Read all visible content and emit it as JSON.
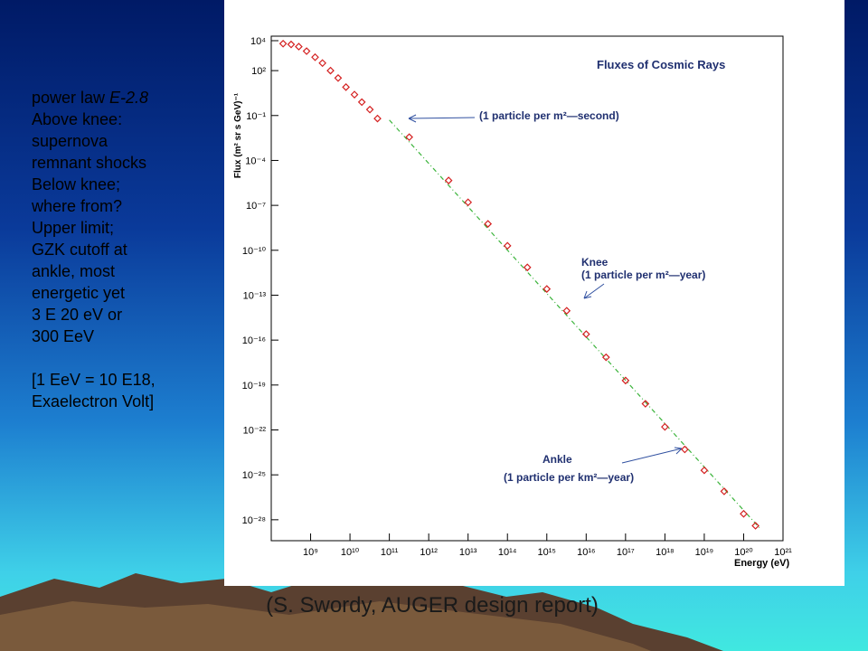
{
  "slide": {
    "text_lines": [
      [
        "power law ",
        "E-2.8"
      ],
      [
        "Above knee:"
      ],
      [
        "supernova"
      ],
      [
        "remnant shocks"
      ],
      [
        "Below knee;"
      ],
      [
        "where from?"
      ],
      [
        "Upper limit;"
      ],
      [
        "GZK cutoff at"
      ],
      [
        "ankle, most"
      ],
      [
        "energetic yet"
      ],
      [
        "3 E 20 eV or"
      ],
      [
        "300 EeV"
      ],
      [
        "[1 EeV = 10 E18,"
      ],
      [
        "Exaelectron Volt]"
      ]
    ],
    "caption": "(S. Swordy, AUGER design report)"
  },
  "chart_data": {
    "type": "scatter",
    "title": "Fluxes of Cosmic Rays",
    "xlabel": "Energy (eV)",
    "ylabel": "Flux (m² sr s GeV)⁻¹",
    "xlog": true,
    "ylog": true,
    "xlim": [
      100000000.0,
      1e+21
    ],
    "ylim": [
      4e-30,
      20000.0
    ],
    "xticks": [
      {
        "value": 1000000000.0,
        "label": "10⁹"
      },
      {
        "value": 10000000000.0,
        "label": "10¹⁰"
      },
      {
        "value": 100000000000.0,
        "label": "10¹¹"
      },
      {
        "value": 1000000000000.0,
        "label": "10¹²"
      },
      {
        "value": 10000000000000.0,
        "label": "10¹³"
      },
      {
        "value": 100000000000000.0,
        "label": "10¹⁴"
      },
      {
        "value": 1000000000000000.0,
        "label": "10¹⁵"
      },
      {
        "value": 1e+16,
        "label": "10¹⁶"
      },
      {
        "value": 1e+17,
        "label": "10¹⁷"
      },
      {
        "value": 1e+18,
        "label": "10¹⁸"
      },
      {
        "value": 1e+19,
        "label": "10¹⁹"
      },
      {
        "value": 1e+20,
        "label": "10²⁰"
      },
      {
        "value": 1e+21,
        "label": "10²¹"
      }
    ],
    "yticks": [
      {
        "value": 10000.0,
        "label": "10⁴"
      },
      {
        "value": 100.0,
        "label": "10²"
      },
      {
        "value": 0.1,
        "label": "10⁻¹"
      },
      {
        "value": 0.0001,
        "label": "10⁻⁴"
      },
      {
        "value": 1e-07,
        "label": "10⁻⁷"
      },
      {
        "value": 1e-10,
        "label": "10⁻¹⁰"
      },
      {
        "value": 1e-13,
        "label": "10⁻¹³"
      },
      {
        "value": 1e-16,
        "label": "10⁻¹⁶"
      },
      {
        "value": 1e-19,
        "label": "10⁻¹⁹"
      },
      {
        "value": 1e-22,
        "label": "10⁻²²"
      },
      {
        "value": 1e-25,
        "label": "10⁻²⁵"
      },
      {
        "value": 1e-28,
        "label": "10⁻²⁸"
      }
    ],
    "color": "#d42020",
    "x": [
      200000000.0,
      320000000.0,
      500000000.0,
      790000000.0,
      1300000000.0,
      2000000000.0,
      3200000000.0,
      5000000000.0,
      7900000000.0,
      13000000000.0,
      20000000000.0,
      32000000000.0,
      50000000000.0,
      320000000000.0,
      3200000000000.0,
      10000000000000.0,
      32000000000000.0,
      100000000000000.0,
      320000000000000.0,
      1000000000000000.0,
      3200000000000000.0,
      1e+16,
      3.2e+16,
      1e+17,
      3.2e+17,
      1e+18,
      3.2e+18,
      1e+19,
      3.2e+19,
      1e+20,
      2e+20
    ],
    "values": [
      6300.0,
      5600.0,
      4000.0,
      2000.0,
      790.0,
      320.0,
      100.0,
      32,
      7.9,
      2.5,
      0.79,
      0.25,
      0.063,
      0.0036,
      4.6e-06,
      1.6e-07,
      5.8e-09,
      2e-10,
      7.2e-12,
      2.6e-13,
      9.1e-15,
      2.5e-16,
      7.1e-18,
      2e-19,
      5.6e-21,
      1.6e-22,
      5e-24,
      2e-25,
      7.9e-27,
      2.5e-28,
      4e-29
    ],
    "fit_line": {
      "color": "#3cb43c",
      "x": [
        100000000000.0,
        2.5e+20
      ],
      "values": [
        0.05,
        3e-29
      ]
    },
    "annotations": [
      {
        "text": "(1 particle per m²—second)"
      },
      {
        "text": "Knee"
      },
      {
        "text": "(1 particle per m²—year)"
      },
      {
        "text": "Ankle"
      },
      {
        "text": "(1 particle per km²—year)"
      }
    ]
  }
}
